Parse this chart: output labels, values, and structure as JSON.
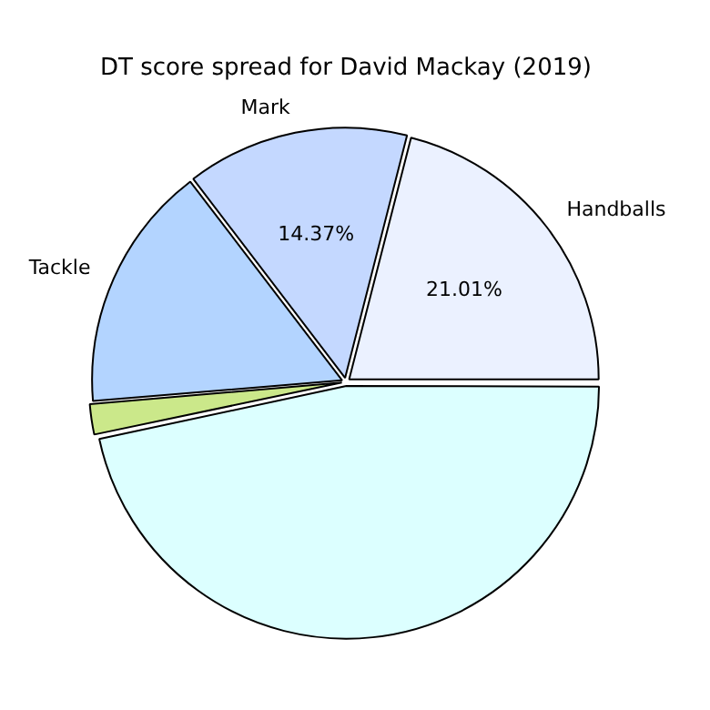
{
  "chart_data": {
    "type": "pie",
    "title": "DT score spread for David Mackay (2019)",
    "categories": [
      "Handballs",
      "Mark",
      "Tackle",
      null,
      null
    ],
    "values": [
      21.01,
      14.37,
      15.95,
      2.0,
      46.67
    ],
    "colors": [
      "#ebf1ff",
      "#c4d8ff",
      "#b3d4ff",
      "#cbe88a",
      "#dcffff"
    ],
    "value_labels": [
      "21.01%",
      "14.37%",
      null,
      null,
      null
    ],
    "legend": false
  }
}
